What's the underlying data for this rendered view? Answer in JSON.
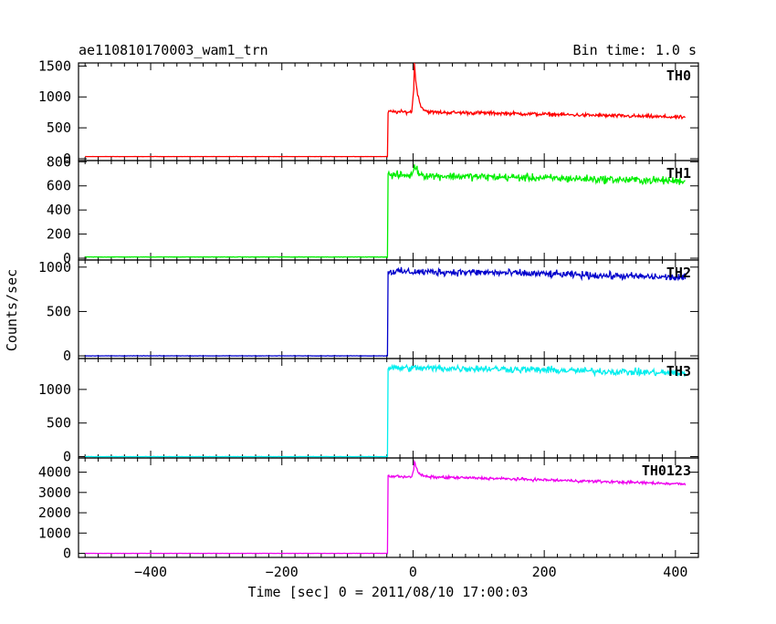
{
  "header": {
    "title": "ae110810170003_wam1_trn",
    "bin_time": "Bin time: 1.0 s"
  },
  "chart_data": {
    "type": "line",
    "ylabel": "Counts/sec",
    "xlabel": "Time [sec] 0 = 2011/08/10 17:00:03",
    "xlim": [
      -510,
      435
    ],
    "x_ticks": [
      -400,
      -200,
      0,
      200,
      400
    ],
    "x_tick_labels": [
      "−400",
      "−200",
      "0",
      "200",
      "400"
    ],
    "x_start": -500,
    "x_end": 415,
    "panels": [
      {
        "name": "TH0",
        "color": "#ff0000",
        "ylim": [
          -30,
          1550
        ],
        "yticks": [
          0,
          500,
          1000,
          1500
        ],
        "baseline": 35,
        "rise_time": -38,
        "plateau": 760,
        "spike": {
          "t": 2,
          "peak": 1560
        },
        "tail_level": 740,
        "end_level": 670,
        "noise": 25
      },
      {
        "name": "TH1",
        "color": "#00ee00",
        "ylim": [
          -15,
          810
        ],
        "yticks": [
          0,
          200,
          400,
          600,
          800
        ],
        "baseline": 10,
        "rise_time": -38,
        "plateau": 690,
        "spike": {
          "t": 2,
          "peak": 790
        },
        "tail_level": 675,
        "end_level": 640,
        "noise": 28
      },
      {
        "name": "TH2",
        "color": "#0000cc",
        "ylim": [
          -30,
          1080
        ],
        "yticks": [
          0,
          500,
          1000
        ],
        "baseline": 0,
        "rise_time": -38,
        "plateau": 950,
        "spike": null,
        "tail_level": 940,
        "end_level": 880,
        "noise": 35
      },
      {
        "name": "TH3",
        "color": "#00eeee",
        "ylim": [
          -20,
          1460
        ],
        "yticks": [
          0,
          500,
          1000
        ],
        "baseline": 0,
        "rise_time": -38,
        "plateau": 1320,
        "spike": null,
        "tail_level": 1310,
        "end_level": 1240,
        "noise": 45
      },
      {
        "name": "TH0123",
        "color": "#ee00ee",
        "ylim": [
          -200,
          4700
        ],
        "yticks": [
          0,
          1000,
          2000,
          3000,
          4000
        ],
        "baseline": 0,
        "rise_time": -38,
        "plateau": 3800,
        "spike": {
          "t": 2,
          "peak": 4550
        },
        "tail_level": 3700,
        "end_level": 3420,
        "noise": 60
      }
    ]
  }
}
